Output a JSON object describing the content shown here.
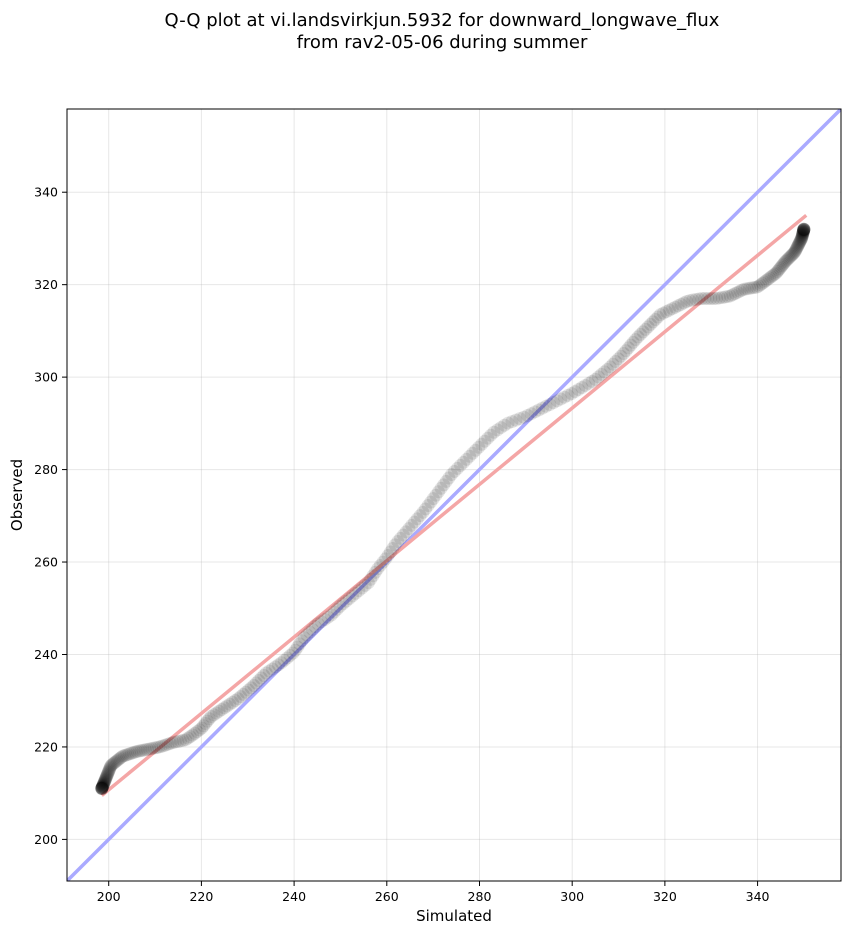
{
  "chart_data": {
    "type": "scatter",
    "title_lines": [
      "Q-Q plot at vi.landsvirkjun.5932 for downward_longwave_flux",
      "from rav2-05-06 during summer"
    ],
    "xlabel": "Simulated",
    "ylabel": "Observed",
    "xlim": [
      191,
      358
    ],
    "ylim": [
      191,
      358
    ],
    "xticks": [
      200,
      220,
      240,
      260,
      280,
      300,
      320,
      340
    ],
    "yticks": [
      200,
      220,
      240,
      260,
      280,
      300,
      320,
      340
    ],
    "grid": true,
    "reference_lines": [
      {
        "kind": "identity",
        "color": "#aaaaff",
        "x": [
          191,
          358
        ],
        "y": [
          191,
          358
        ]
      },
      {
        "kind": "fit",
        "color": "#f4a6a6",
        "x": [
          198.5,
          350.5
        ],
        "y": [
          209.5,
          335
        ]
      }
    ],
    "series": [
      {
        "marker_color": "#000000",
        "quantile_curve": [
          [
            198.5,
            211
          ],
          [
            200.5,
            216
          ],
          [
            203,
            218
          ],
          [
            206,
            219
          ],
          [
            211,
            220
          ],
          [
            214,
            221
          ],
          [
            216.5,
            221.5
          ],
          [
            218,
            222.5
          ],
          [
            220,
            224
          ],
          [
            222,
            226.5
          ],
          [
            225,
            228.5
          ],
          [
            228,
            230.5
          ],
          [
            231,
            233
          ],
          [
            234,
            236
          ],
          [
            237,
            238
          ],
          [
            240,
            240.5
          ],
          [
            242,
            243.5
          ],
          [
            245,
            246.5
          ],
          [
            248,
            248.5
          ],
          [
            250,
            250.5
          ],
          [
            253,
            253
          ],
          [
            256,
            255.5
          ],
          [
            258,
            258.5
          ],
          [
            260,
            261
          ],
          [
            262,
            264
          ],
          [
            265,
            267.5
          ],
          [
            268,
            271
          ],
          [
            271,
            275
          ],
          [
            274,
            279
          ],
          [
            277,
            282
          ],
          [
            280,
            285
          ],
          [
            283,
            288
          ],
          [
            286,
            290
          ],
          [
            290,
            291.5
          ],
          [
            295,
            294
          ],
          [
            300,
            296.5
          ],
          [
            305,
            299.5
          ],
          [
            308,
            302
          ],
          [
            311,
            305
          ],
          [
            314,
            308.5
          ],
          [
            317,
            311.5
          ],
          [
            319,
            313.5
          ],
          [
            322,
            315
          ],
          [
            325,
            316.5
          ],
          [
            328,
            317
          ],
          [
            331,
            317
          ],
          [
            334,
            317.5
          ],
          [
            337,
            319
          ],
          [
            340,
            319.5
          ],
          [
            342,
            321
          ],
          [
            344,
            322.5
          ],
          [
            346,
            325
          ],
          [
            348,
            327
          ],
          [
            349.5,
            330
          ],
          [
            350,
            332
          ]
        ],
        "n_points": 340
      }
    ]
  }
}
